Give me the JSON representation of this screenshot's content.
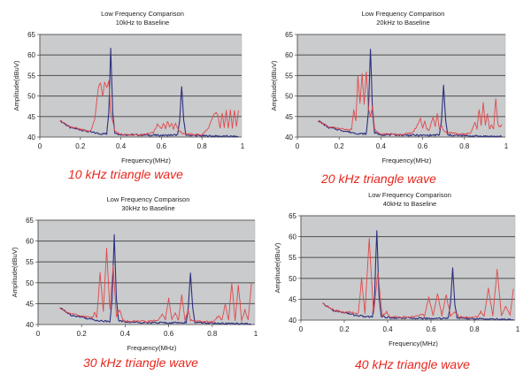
{
  "colors": {
    "plot_bg": "#c9cbcd",
    "grid": "#5c5c5c",
    "baseline": "#2e2f7e",
    "test": "#e2484a",
    "caption": "#e8261e"
  },
  "chart_data": [
    {
      "type": "line",
      "title": "Low Frequency Comparison",
      "subtitle": "10kHz to Baseline",
      "xlabel": "Frequency(MHz)",
      "ylabel": "Amplitude(dBuV)",
      "xlim": [
        0,
        1
      ],
      "ylim": [
        40,
        65
      ],
      "xticks": [
        "0",
        "0.2",
        "0.4",
        "0.6",
        "0.8",
        "1"
      ],
      "yticks": [
        "40",
        "45",
        "50",
        "55",
        "60",
        "65"
      ],
      "grid": true,
      "caption": "10 kHz triangle wave",
      "series": [
        {
          "name": "Baseline",
          "x": [
            0.1,
            0.15,
            0.2,
            0.25,
            0.3,
            0.33,
            0.34,
            0.35,
            0.36,
            0.37,
            0.4,
            0.5,
            0.6,
            0.68,
            0.69,
            0.7,
            0.71,
            0.72,
            0.8,
            0.9,
            0.98
          ],
          "y": [
            44,
            42.3,
            41.8,
            41.2,
            40.8,
            40.8,
            46,
            61.5,
            46,
            41,
            40.6,
            40.5,
            40.4,
            40.5,
            44,
            52.5,
            44,
            40.5,
            40.3,
            40.2,
            40.1
          ]
        },
        {
          "name": "10 kHz",
          "x": [
            0.1,
            0.15,
            0.2,
            0.25,
            0.27,
            0.29,
            0.3,
            0.31,
            0.32,
            0.33,
            0.34,
            0.35,
            0.37,
            0.4,
            0.5,
            0.56,
            0.58,
            0.6,
            0.61,
            0.62,
            0.63,
            0.64,
            0.65,
            0.66,
            0.67,
            0.68,
            0.7,
            0.75,
            0.8,
            0.83,
            0.86,
            0.87,
            0.88,
            0.89,
            0.9,
            0.91,
            0.92,
            0.93,
            0.94,
            0.95,
            0.96,
            0.97,
            0.98
          ],
          "y": [
            44,
            42.5,
            41.9,
            41.4,
            44,
            52.5,
            53,
            50,
            53.5,
            52,
            53.5,
            46,
            41.5,
            40.6,
            40.5,
            41,
            43,
            42,
            43.5,
            42,
            44,
            42.5,
            43.5,
            42,
            43.5,
            42,
            41,
            40.6,
            40.6,
            42,
            45.5,
            46,
            45,
            42,
            46,
            42.5,
            46.5,
            42,
            46.5,
            42,
            46.5,
            42.5,
            46.5
          ]
        }
      ]
    },
    {
      "type": "line",
      "title": "Low Frequency Comparison",
      "subtitle": "20kHz to Baseline",
      "xlabel": "Frequency(MHz)",
      "ylabel": "Amplitude(dBuV)",
      "xlim": [
        0,
        1
      ],
      "ylim": [
        40,
        65
      ],
      "xticks": [
        "0",
        "0.2",
        "0.4",
        "0.6",
        "0.8",
        "1"
      ],
      "yticks": [
        "40",
        "45",
        "50",
        "55",
        "60",
        "65"
      ],
      "grid": true,
      "caption": "20 kHz triangle wave",
      "series": [
        {
          "name": "Baseline",
          "x": [
            0.1,
            0.15,
            0.2,
            0.25,
            0.3,
            0.33,
            0.34,
            0.35,
            0.36,
            0.37,
            0.4,
            0.5,
            0.6,
            0.68,
            0.69,
            0.7,
            0.71,
            0.72,
            0.8,
            0.9,
            0.98
          ],
          "y": [
            44,
            42.3,
            41.8,
            41.2,
            40.8,
            40.8,
            46,
            61.5,
            46,
            41,
            40.6,
            40.5,
            40.4,
            40.5,
            44,
            52.5,
            44,
            40.5,
            40.3,
            40.2,
            40.1
          ]
        },
        {
          "name": "20 kHz",
          "x": [
            0.1,
            0.15,
            0.2,
            0.25,
            0.26,
            0.27,
            0.28,
            0.29,
            0.3,
            0.31,
            0.32,
            0.33,
            0.34,
            0.35,
            0.36,
            0.37,
            0.38,
            0.4,
            0.5,
            0.55,
            0.57,
            0.59,
            0.6,
            0.61,
            0.62,
            0.63,
            0.65,
            0.66,
            0.67,
            0.68,
            0.69,
            0.7,
            0.72,
            0.8,
            0.83,
            0.85,
            0.86,
            0.87,
            0.88,
            0.89,
            0.9,
            0.91,
            0.92,
            0.93,
            0.94,
            0.95,
            0.96,
            0.97,
            0.98
          ],
          "y": [
            44,
            42.5,
            42,
            41.8,
            42,
            46.5,
            44,
            55,
            48,
            55.5,
            48,
            56,
            47,
            45,
            47.5,
            42,
            41.5,
            40.8,
            40.6,
            41,
            42.5,
            44.5,
            42,
            44,
            42,
            41.5,
            45,
            42.5,
            45.5,
            42,
            43,
            41.5,
            41,
            40.7,
            41,
            43.5,
            42,
            46.5,
            43,
            48.5,
            43,
            45.5,
            42,
            43,
            42,
            49.5,
            43,
            42.5,
            43
          ]
        }
      ]
    },
    {
      "type": "line",
      "title": "Low Frequency Comparison",
      "subtitle": "30kHz to Baseline",
      "xlabel": "Frequency(MHz)",
      "ylabel": "Amplitude(dBuV)",
      "xlim": [
        0,
        1
      ],
      "ylim": [
        40,
        65
      ],
      "xticks": [
        "0",
        "0.2",
        "0.4",
        "0.6",
        "0.8",
        "1"
      ],
      "yticks": [
        "40",
        "45",
        "50",
        "55",
        "60",
        "65"
      ],
      "grid": true,
      "caption": "30 kHz triangle wave",
      "series": [
        {
          "name": "Baseline",
          "x": [
            0.1,
            0.15,
            0.2,
            0.25,
            0.3,
            0.33,
            0.34,
            0.35,
            0.36,
            0.37,
            0.4,
            0.5,
            0.6,
            0.68,
            0.69,
            0.7,
            0.71,
            0.72,
            0.8,
            0.9,
            0.98
          ],
          "y": [
            44,
            42.3,
            41.8,
            41.2,
            40.8,
            40.8,
            46,
            61.5,
            46,
            41,
            40.6,
            40.5,
            40.4,
            40.5,
            44,
            52.5,
            44,
            40.5,
            40.3,
            40.2,
            40.1
          ]
        },
        {
          "name": "30 kHz",
          "x": [
            0.1,
            0.15,
            0.2,
            0.25,
            0.26,
            0.27,
            0.285,
            0.3,
            0.315,
            0.33,
            0.345,
            0.36,
            0.375,
            0.39,
            0.4,
            0.5,
            0.55,
            0.57,
            0.585,
            0.6,
            0.615,
            0.63,
            0.645,
            0.66,
            0.675,
            0.69,
            0.7,
            0.72,
            0.8,
            0.83,
            0.845,
            0.86,
            0.875,
            0.89,
            0.905,
            0.92,
            0.935,
            0.95,
            0.965,
            0.98
          ],
          "y": [
            44,
            42.6,
            42,
            41.7,
            43,
            41.5,
            52.5,
            43,
            58.5,
            43.5,
            54,
            42,
            43.5,
            41,
            40.8,
            40.7,
            41,
            42.5,
            41,
            46.5,
            41,
            43,
            41,
            47,
            41,
            43.5,
            41,
            40.8,
            40.6,
            42,
            41,
            45,
            41,
            50,
            41,
            49.5,
            41,
            43.5,
            41,
            50
          ]
        }
      ]
    },
    {
      "type": "line",
      "title": "Low Frequency Comparison",
      "subtitle": "40kHz to Baseline",
      "xlabel": "Frequency(MHz)",
      "ylabel": "Amplitude(dBuV)",
      "xlim": [
        0,
        1
      ],
      "ylim": [
        40,
        65
      ],
      "xticks": [
        "0",
        "0.2",
        "0.4",
        "0.6",
        "0.8",
        "1"
      ],
      "yticks": [
        "40",
        "45",
        "50",
        "55",
        "60",
        "65"
      ],
      "grid": true,
      "caption": "40 kHz triangle wave",
      "series": [
        {
          "name": "Baseline",
          "x": [
            0.1,
            0.15,
            0.2,
            0.25,
            0.3,
            0.33,
            0.34,
            0.35,
            0.36,
            0.37,
            0.4,
            0.5,
            0.6,
            0.68,
            0.69,
            0.7,
            0.71,
            0.72,
            0.8,
            0.9,
            0.98
          ],
          "y": [
            44,
            42.3,
            41.8,
            41.2,
            40.8,
            40.8,
            46,
            61.5,
            46,
            41,
            40.6,
            40.5,
            40.4,
            40.5,
            44,
            52.5,
            44,
            40.5,
            40.3,
            40.2,
            40.1
          ]
        },
        {
          "name": "40 kHz",
          "x": [
            0.1,
            0.15,
            0.2,
            0.23,
            0.25,
            0.265,
            0.28,
            0.295,
            0.315,
            0.335,
            0.355,
            0.375,
            0.395,
            0.41,
            0.5,
            0.54,
            0.555,
            0.57,
            0.59,
            0.61,
            0.63,
            0.65,
            0.67,
            0.69,
            0.71,
            0.73,
            0.8,
            0.82,
            0.83,
            0.845,
            0.865,
            0.885,
            0.905,
            0.925,
            0.945,
            0.965,
            0.98
          ],
          "y": [
            44,
            42.5,
            41.8,
            42,
            41.5,
            41.5,
            50,
            41.5,
            59.5,
            41.5,
            51.5,
            41,
            42,
            40.8,
            40.7,
            41,
            41.5,
            41,
            45.5,
            41,
            46.5,
            41,
            46,
            41,
            42,
            40.8,
            40.6,
            41,
            42,
            41,
            47.5,
            41,
            52,
            41,
            43.5,
            41,
            47.5
          ]
        }
      ]
    }
  ]
}
